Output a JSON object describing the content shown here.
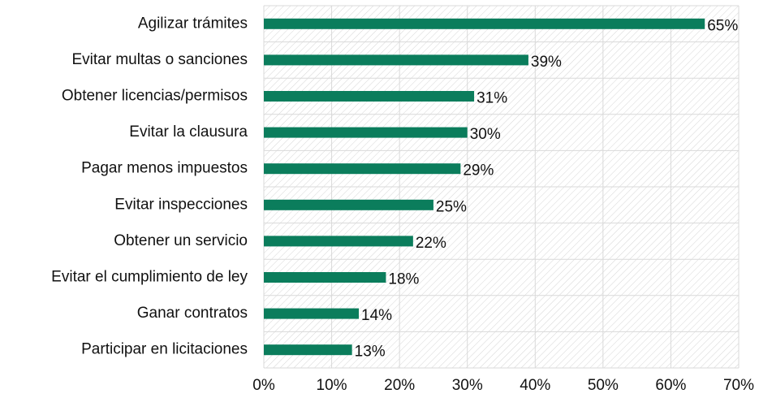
{
  "chart_data": {
    "type": "hbar",
    "categories": [
      "Agilizar trámites",
      "Evitar multas o sanciones",
      "Obtener licencias/permisos",
      "Evitar la clausura",
      "Pagar menos impuestos",
      "Evitar inspecciones",
      "Obtener un servicio",
      "Evitar el cumplimiento de ley",
      "Ganar contratos",
      "Participar en licitaciones"
    ],
    "values": [
      65,
      39,
      31,
      30,
      29,
      25,
      22,
      18,
      14,
      13
    ],
    "value_labels": [
      "65%",
      "39%",
      "31%",
      "30%",
      "29%",
      "25%",
      "22%",
      "18%",
      "14%",
      "13%"
    ],
    "color": "#0b7d5c",
    "xlim": [
      0,
      70
    ],
    "xticks": [
      {
        "value": 0,
        "label": "0%"
      },
      {
        "value": 10,
        "label": "10%"
      },
      {
        "value": 20,
        "label": "20%"
      },
      {
        "value": 30,
        "label": "30%"
      },
      {
        "value": 40,
        "label": "40%"
      },
      {
        "value": 50,
        "label": "50%"
      },
      {
        "value": 60,
        "label": "60%"
      },
      {
        "value": 70,
        "label": "70%"
      }
    ],
    "grid": true
  }
}
